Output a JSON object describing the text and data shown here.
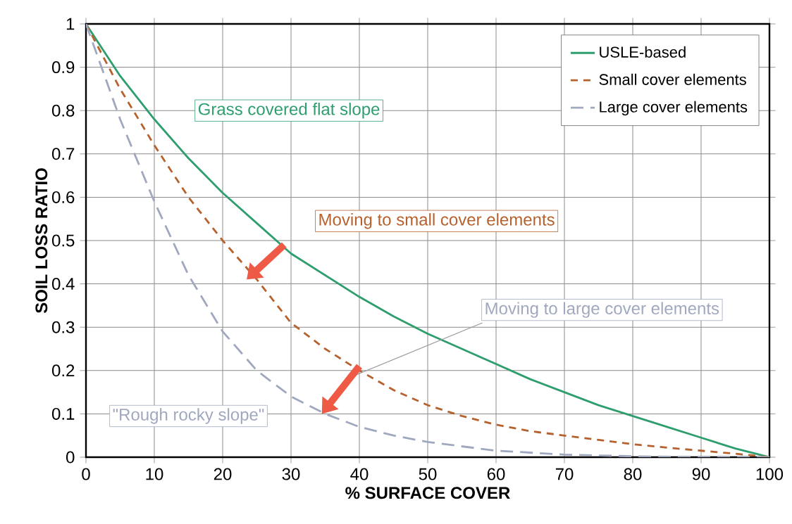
{
  "chart_data": {
    "type": "line",
    "xlabel": "% SURFACE COVER",
    "ylabel": "SOIL LOSS RATIO",
    "xlim": [
      0,
      100
    ],
    "ylim": [
      0,
      1
    ],
    "xticks": [
      0,
      10,
      20,
      30,
      40,
      50,
      60,
      70,
      80,
      90,
      100
    ],
    "yticks": [
      0,
      0.1,
      0.2,
      0.3,
      0.4,
      0.5,
      0.6,
      0.7,
      0.8,
      0.9,
      1
    ],
    "grid": true,
    "legend": "top right",
    "marker": "none",
    "series": [
      {
        "name": "USLE-based",
        "color": "#2e9e6e",
        "line_style": "solid",
        "x": [
          0,
          5,
          10,
          15,
          20,
          25,
          30,
          35,
          40,
          45,
          50,
          55,
          60,
          65,
          70,
          75,
          80,
          85,
          90,
          95,
          100
        ],
        "values": [
          1,
          0.88,
          0.78,
          0.69,
          0.61,
          0.54,
          0.47,
          0.42,
          0.37,
          0.325,
          0.285,
          0.25,
          0.215,
          0.18,
          0.15,
          0.12,
          0.095,
          0.07,
          0.045,
          0.02,
          0
        ]
      },
      {
        "name": "Small cover elements",
        "color": "#b5622e",
        "line_style": "dashed",
        "x": [
          0,
          5,
          10,
          15,
          20,
          25,
          30,
          35,
          40,
          45,
          50,
          55,
          60,
          65,
          70,
          75,
          80,
          85,
          90,
          95,
          100
        ],
        "values": [
          1,
          0.85,
          0.72,
          0.6,
          0.5,
          0.41,
          0.31,
          0.25,
          0.2,
          0.155,
          0.12,
          0.095,
          0.075,
          0.06,
          0.05,
          0.04,
          0.03,
          0.022,
          0.015,
          0.008,
          0
        ]
      },
      {
        "name": "Large cover elements",
        "color": "#a0a8bf",
        "line_style": "dashed",
        "x": [
          0,
          5,
          10,
          15,
          20,
          25,
          30,
          35,
          40,
          45,
          50,
          60,
          70,
          80,
          90,
          100
        ],
        "values": [
          1,
          0.78,
          0.59,
          0.42,
          0.29,
          0.2,
          0.14,
          0.1,
          0.07,
          0.05,
          0.035,
          0.015,
          0.006,
          0.002,
          0,
          0
        ]
      }
    ],
    "annotations": [
      "Grass covered flat slope",
      "Moving to small cover elements",
      "Moving to large cover elements",
      "\"Rough rocky slope\""
    ]
  }
}
